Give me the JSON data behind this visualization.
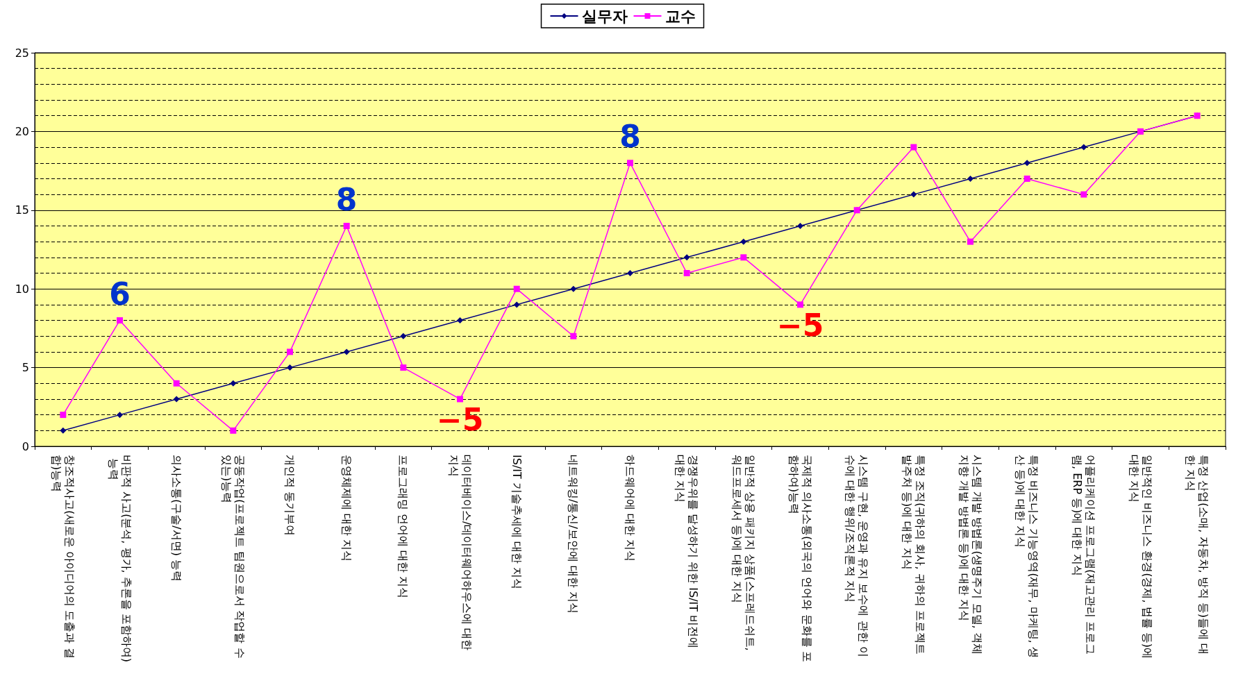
{
  "chart_data": {
    "type": "line",
    "categories": [
      "창조적사고(새로운 아이디어의 도출과 결합)능력",
      "비판적 사고(분석, 평가, 추론을 포함하여) 능력",
      "의사소통(구술/서면) 능력",
      "공동작업(프로젝트 팀원으로서 작업할 수 있는)능력",
      "개인적 동기부여",
      "운영체제에 대한 지식",
      "프로그래밍 언어에 대한 지식",
      "데이터베이스/데이터웨어하우스에 대한 지식",
      "IS/IT 기술추세에 대한 지식",
      "네트워킹/통신/보안에 대한 지식",
      "하드웨어에 대한 지식",
      "경쟁우위를 달성하기 위한 IS/IT 비전에 대한 지식",
      "일반적 상용 패키지 상품(스프레드쉬트, 워드프로세서 등)에 대한 지식",
      "국제적 의사소통(외국의 언어와 문화를 포함하여)능력",
      "시스템 구현, 운영과 유지 보수에 관한 이슈에 대한 행위/조직론적 지식",
      "특정 조직(귀하의 회사, 귀하의 프로젝트 발주처 등)에 대한 지식",
      "시스템 개발 방법론(생명주기 모델, 객체지향 개발 방법론 등)에 대한 지식",
      "특정 비즈니스 기능영역(재무, 마케팅, 생산 등)에 대한 지식",
      "어플리케이션 프로그램(재고관리 프로그램, ERP 등)에 대한 지식",
      "일반적인 비즈니스 환경(경제, 법률 등)에 대한 지식",
      "특정 산업(소매, 자동차, 방직 등)들에 대한 지식"
    ],
    "series": [
      {
        "name": "실무자",
        "color": "#000080",
        "marker": "diamond",
        "values": [
          1,
          2,
          3,
          4,
          5,
          6,
          7,
          8,
          9,
          10,
          11,
          12,
          13,
          14,
          15,
          16,
          17,
          18,
          19,
          20,
          21
        ]
      },
      {
        "name": "교수",
        "color": "#ff00ff",
        "marker": "square",
        "values": [
          2,
          8,
          4,
          1,
          6,
          14,
          5,
          3,
          10,
          7,
          18,
          11,
          12,
          9,
          15,
          19,
          13,
          17,
          16,
          20,
          21
        ]
      }
    ],
    "ylim": [
      0,
      25
    ],
    "yticks": [
      0,
      5,
      10,
      15,
      20,
      25
    ],
    "grid": "y",
    "legend": "top",
    "annotations": [
      {
        "text": "6",
        "x": "비판적 사고(분석, 평가, 추론을 포함하여) 능력",
        "y": 8
      },
      {
        "text": "8",
        "x": "운영체제에 대한 지식",
        "y": 14
      },
      {
        "text": "−5",
        "x": "데이터베이스/데이터웨어하우스에 대한 지식",
        "y": 3
      },
      {
        "text": "8",
        "x": "하드웨어에 대한 지식",
        "y": 18
      },
      {
        "text": "−5",
        "x": "국제적 의사소통(외국의 언어와 문화를 포함하여)능력",
        "y": 9
      }
    ]
  }
}
